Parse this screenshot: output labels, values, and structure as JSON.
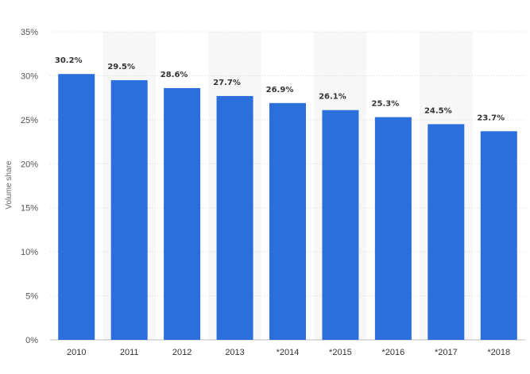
{
  "chart_data": {
    "type": "bar",
    "categories": [
      "2010",
      "2011",
      "2012",
      "2013",
      "*2014",
      "*2015",
      "*2016",
      "*2017",
      "*2018"
    ],
    "values": [
      30.2,
      29.5,
      28.6,
      27.7,
      26.9,
      26.1,
      25.3,
      24.5,
      23.7
    ],
    "data_labels": [
      "30.2%",
      "29.5%",
      "28.6%",
      "27.7%",
      "26.9%",
      "26.1%",
      "25.3%",
      "24.5%",
      "23.7%"
    ],
    "ylabel": "Volume share",
    "ylim": [
      0,
      35
    ],
    "yticks": [
      0,
      5,
      10,
      15,
      20,
      25,
      30,
      35
    ],
    "ytick_labels": [
      "0%",
      "5%",
      "10%",
      "15%",
      "20%",
      "25%",
      "30%",
      "35%"
    ],
    "grid": true,
    "alternating_column_bands": true,
    "colors": {
      "bar": "#2b6fdc",
      "band": "#f7f7f7",
      "grid": "#d9d9d9"
    }
  }
}
